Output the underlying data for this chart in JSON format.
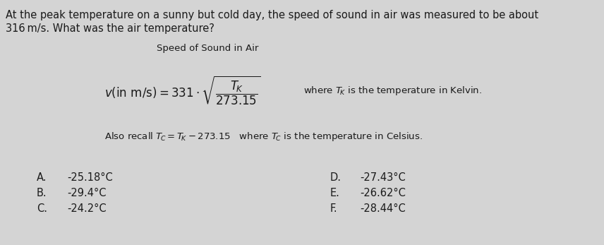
{
  "background_color": "#d4d4d4",
  "text_color": "#1a1a1a",
  "question_line1": "At the peak temperature on a sunny but cold day, the speed of sound in air was measured to be about",
  "question_line2": "316 m/s. What was the air temperature?",
  "formula_title": "Speed of Sound in Air",
  "choices_left": [
    [
      "A.",
      "-25.18°C"
    ],
    [
      "B.",
      "-29.4°C"
    ],
    [
      "C.",
      "-24.2°C"
    ]
  ],
  "choices_right": [
    [
      "D.",
      "-27.43°C"
    ],
    [
      "E.",
      "-26.62°C"
    ],
    [
      "F.",
      "-28.44°C"
    ]
  ],
  "font_size_question": 10.5,
  "font_size_title": 9.5,
  "font_size_formula": 11,
  "font_size_note": 9.5,
  "font_size_choices": 10.5,
  "figwidth": 8.56,
  "figheight": 3.47,
  "dpi": 100
}
